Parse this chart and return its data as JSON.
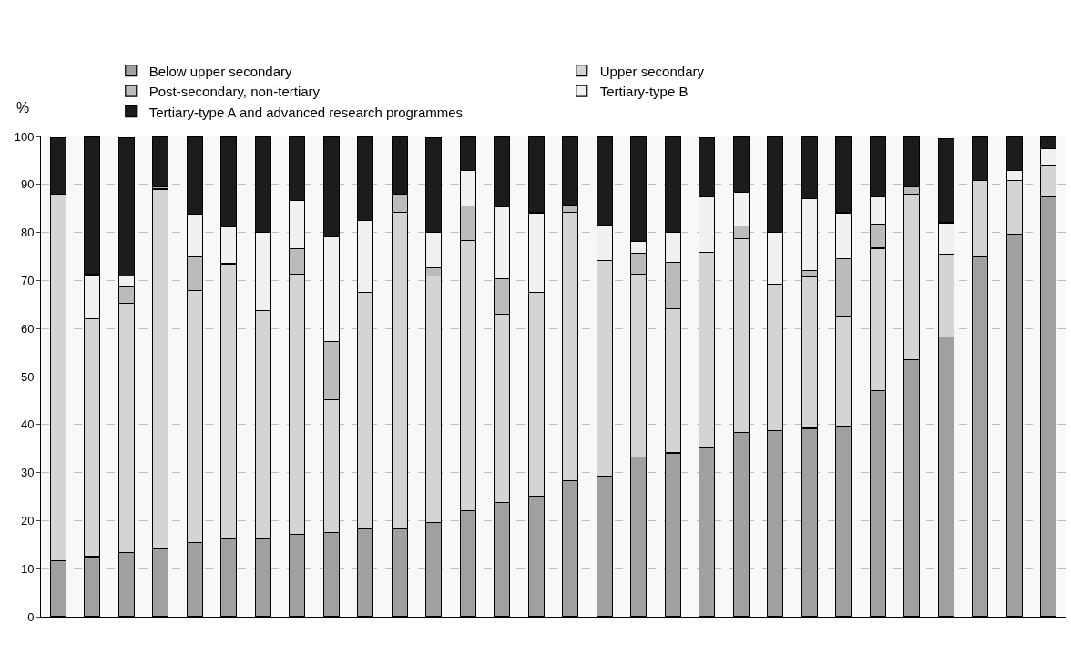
{
  "chart_data": {
    "type": "bar",
    "stacked": true,
    "ylabel": "%",
    "categories": [
      null,
      null,
      null,
      null,
      null,
      null,
      null,
      null,
      null,
      null,
      null,
      null,
      null,
      null,
      null,
      null,
      null,
      null,
      null,
      null,
      null,
      null,
      null,
      null,
      null,
      null,
      null,
      null,
      null,
      null
    ],
    "series": [
      {
        "name": "Below upper secondary",
        "color": "#a0a0a0",
        "values": [
          11.7,
          12.5,
          13.3,
          14.2,
          15.4,
          16.2,
          16.2,
          17.1,
          17.5,
          18.3,
          18.3,
          19.6,
          22.1,
          23.8,
          25.0,
          28.3,
          29.2,
          33.3,
          34.1,
          35.1,
          38.3,
          38.8,
          39.2,
          39.6,
          47.1,
          53.5,
          58.3,
          75.0,
          79.6,
          87.5
        ]
      },
      {
        "name": "Upper secondary",
        "color": "#d4d4d4",
        "values": [
          76.3,
          49.5,
          52.0,
          74.8,
          52.5,
          57.3,
          47.5,
          54.2,
          27.6,
          49.2,
          65.9,
          51.3,
          56.2,
          39.1,
          42.5,
          55.9,
          45.0,
          38.0,
          30.0,
          40.8,
          40.4,
          30.4,
          31.6,
          22.9,
          29.6,
          34.4,
          17.1,
          15.8,
          11.2,
          6.6
        ]
      },
      {
        "name": "Post-secondary, non-tertiary",
        "color": "#bbbbbb",
        "values": [
          0,
          0,
          3.4,
          0.5,
          7.1,
          0,
          0,
          5.3,
          12.2,
          0,
          3.7,
          1.7,
          7.2,
          7.5,
          0,
          1.5,
          0,
          4.4,
          9.6,
          0,
          2.6,
          0,
          1.3,
          12.1,
          5.0,
          1.6,
          0,
          0,
          0,
          0
        ]
      },
      {
        "name": "Tertiary-type B",
        "color": "#f0f0f0",
        "values": [
          0,
          9.2,
          2.3,
          0,
          8.8,
          7.7,
          16.3,
          10.0,
          21.7,
          15.0,
          0,
          7.4,
          7.4,
          15.0,
          16.6,
          0,
          7.3,
          2.4,
          6.3,
          11.5,
          7.0,
          10.8,
          14.9,
          9.5,
          5.7,
          0,
          6.6,
          0,
          2.1,
          3.4
        ]
      },
      {
        "name": "Tertiary-type A and advanced research programmes",
        "color": "#1c1c1c",
        "values": [
          11.7,
          28.8,
          28.7,
          10.5,
          16.2,
          18.8,
          20.0,
          13.4,
          21.0,
          17.5,
          12.1,
          19.7,
          7.1,
          14.6,
          15.9,
          14.3,
          18.5,
          21.9,
          20.0,
          12.3,
          11.7,
          20.0,
          13.0,
          15.9,
          12.6,
          10.5,
          17.6,
          9.2,
          7.1,
          2.5
        ]
      }
    ],
    "ylim": [
      0,
      100
    ],
    "yticks": [
      0,
      10,
      20,
      30,
      40,
      50,
      60,
      70,
      80,
      90,
      100
    ],
    "grid": "y",
    "legend": "top"
  }
}
